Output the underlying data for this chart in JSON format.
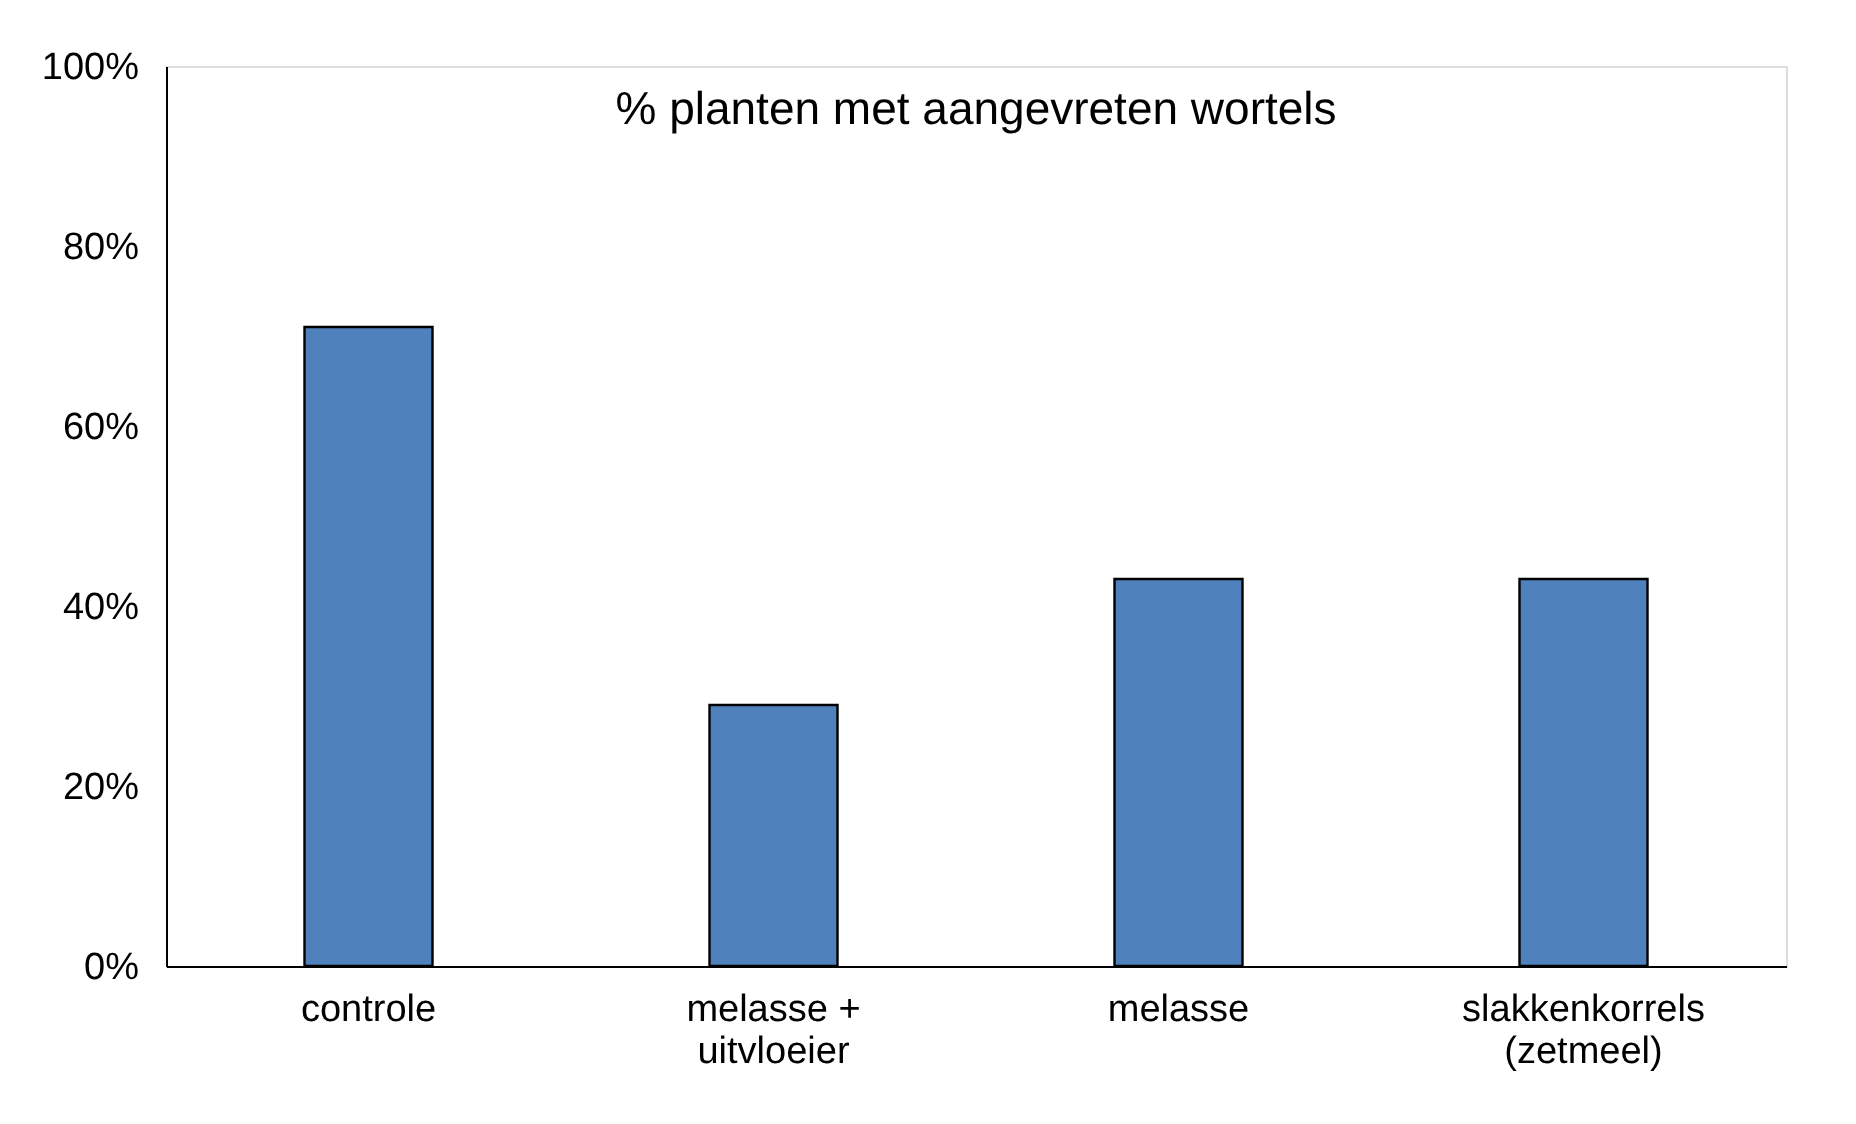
{
  "chart_data": {
    "type": "bar",
    "title": "% planten met aangevreten wortels",
    "categories": [
      "controle",
      "melasse + uitvloeier",
      "melasse",
      "slakkenkorrels (zetmeel)"
    ],
    "values": [
      71,
      29,
      43,
      43
    ],
    "color": "#4f81bd",
    "ylim": [
      0,
      100
    ],
    "yticks": [
      {
        "value": 0,
        "label": "0%"
      },
      {
        "value": 20,
        "label": "20%"
      },
      {
        "value": 40,
        "label": "40%"
      },
      {
        "value": 60,
        "label": "60%"
      },
      {
        "value": 80,
        "label": "80%"
      },
      {
        "value": 100,
        "label": "100%"
      }
    ],
    "grid": false
  }
}
